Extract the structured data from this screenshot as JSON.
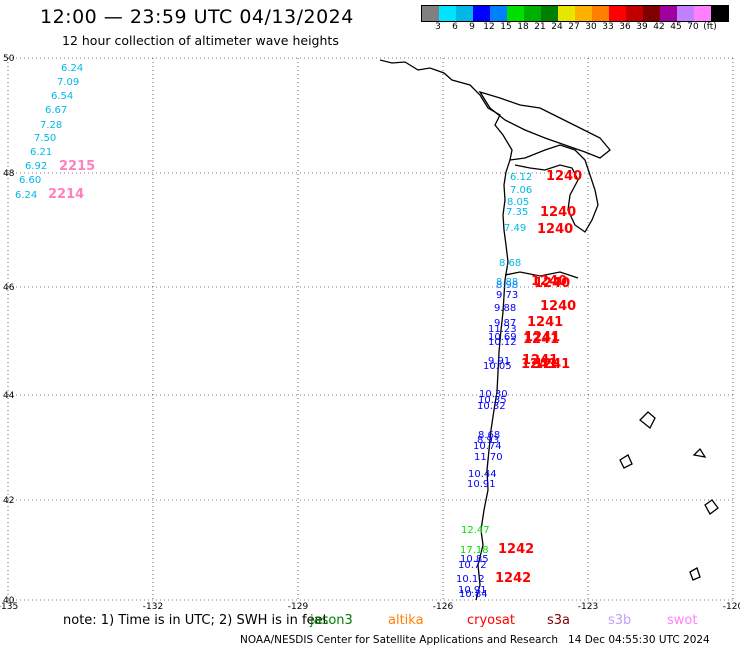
{
  "header": {
    "title": "12:00 — 23:59 UTC 04/13/2024",
    "subtitle": "12 hour collection of altimeter wave heights"
  },
  "legend": {
    "colors": [
      "#808080",
      "#00e5ff",
      "#00b8e6",
      "#0000ff",
      "#0080ff",
      "#00e000",
      "#00b000",
      "#008000",
      "#e6e600",
      "#ffb000",
      "#ff8000",
      "#ff0000",
      "#c00000",
      "#800000",
      "#a000a0",
      "#c080ff",
      "#ff80ff",
      "#000000"
    ],
    "labels": [
      "3",
      "6",
      "9",
      "12",
      "15",
      "18",
      "21",
      "24",
      "27",
      "30",
      "33",
      "36",
      "39",
      "42",
      "45",
      "70",
      "(ft)"
    ]
  },
  "axes": {
    "lat_labels": [
      "50",
      "48",
      "46",
      "44",
      "42",
      "40"
    ],
    "lon_labels": [
      "-135",
      "-132",
      "-129",
      "-126",
      "-123",
      "-120"
    ]
  },
  "observations": [
    {
      "text": "6.24",
      "color": "#00b8e6"
    },
    {
      "text": "7.09",
      "color": "#00b8e6"
    },
    {
      "text": "6.54",
      "color": "#00b8e6"
    },
    {
      "text": "6.67",
      "color": "#00b8e6"
    },
    {
      "text": "7.28",
      "color": "#00b8e6"
    },
    {
      "text": "7.50",
      "color": "#00b8e6"
    },
    {
      "text": "6.21",
      "color": "#00b8e6"
    },
    {
      "text": "6.92",
      "color": "#00b8e6"
    },
    {
      "text": "6.60",
      "color": "#00b8e6"
    },
    {
      "text": "6.24",
      "color": "#00b8e6"
    },
    {
      "text": "2215",
      "color": "#ff80c0"
    },
    {
      "text": "2214",
      "color": "#ff80c0"
    },
    {
      "text": "6.12",
      "color": "#00b8e6"
    },
    {
      "text": "7.06",
      "color": "#00b8e6"
    },
    {
      "text": "8.05",
      "color": "#00b8e6"
    },
    {
      "text": "7.35",
      "color": "#00b8e6"
    },
    {
      "text": "7.49",
      "color": "#00b8e6"
    },
    {
      "text": "8.68",
      "color": "#00b8e6"
    },
    {
      "text": "8.88",
      "color": "#00b8e6"
    },
    {
      "text": "8.98",
      "color": "#0080ff"
    },
    {
      "text": "9.73",
      "color": "#0000ff"
    },
    {
      "text": "9.88",
      "color": "#0000ff"
    },
    {
      "text": "9.87",
      "color": "#0000ff"
    },
    {
      "text": "11.23",
      "color": "#0000ff"
    },
    {
      "text": "10.69",
      "color": "#0000ff"
    },
    {
      "text": "10.12",
      "color": "#0000ff"
    },
    {
      "text": "9.91",
      "color": "#0000ff"
    },
    {
      "text": "10.05",
      "color": "#0000ff"
    },
    {
      "text": "10.30",
      "color": "#0000ff"
    },
    {
      "text": "10.35",
      "color": "#0000ff"
    },
    {
      "text": "10.32",
      "color": "#0000ff"
    },
    {
      "text": "8.68",
      "color": "#0000ff"
    },
    {
      "text": "8.93",
      "color": "#0000ff"
    },
    {
      "text": "10.74",
      "color": "#0000ff"
    },
    {
      "text": "11.70",
      "color": "#0000ff"
    },
    {
      "text": "10.44",
      "color": "#0000ff"
    },
    {
      "text": "10.91",
      "color": "#0000ff"
    },
    {
      "text": "12.47",
      "color": "#00e000"
    },
    {
      "text": "17.18",
      "color": "#00e000"
    },
    {
      "text": "10.85",
      "color": "#0000ff"
    },
    {
      "text": "10.72",
      "color": "#0000ff"
    },
    {
      "text": "10.12",
      "color": "#0000ff"
    },
    {
      "text": "10.91",
      "color": "#0000ff"
    },
    {
      "text": "10.84",
      "color": "#0000ff"
    },
    {
      "text": "1240",
      "color": "#ff0000"
    },
    {
      "text": "1240",
      "color": "#ff0000"
    },
    {
      "text": "1240",
      "color": "#ff0000"
    },
    {
      "text": "1240",
      "color": "#ff0000"
    },
    {
      "text": "1240",
      "color": "#ff0000"
    },
    {
      "text": "1240",
      "color": "#ff0000"
    },
    {
      "text": "1241",
      "color": "#ff0000"
    },
    {
      "text": "1241",
      "color": "#ff0000"
    },
    {
      "text": "1241",
      "color": "#ff0000"
    },
    {
      "text": "1241",
      "color": "#ff0000"
    },
    {
      "text": "1241",
      "color": "#ff0000"
    },
    {
      "text": "1241",
      "color": "#ff0000"
    },
    {
      "text": "1242",
      "color": "#ff0000"
    },
    {
      "text": "1242",
      "color": "#ff0000"
    }
  ],
  "footer": {
    "note": "note:  1) Time is in UTC; 2) SWH is in feet",
    "missions": [
      {
        "name": "jason3",
        "color": "#008000"
      },
      {
        "name": "altika",
        "color": "#ff8000"
      },
      {
        "name": "cryosat",
        "color": "#ff0000"
      },
      {
        "name": "s3a",
        "color": "#800000"
      },
      {
        "name": "s3b",
        "color": "#c0a0ff"
      },
      {
        "name": "swot",
        "color": "#ff80ff"
      }
    ],
    "credit": "NOAA/NESDIS Center for Satellite Applications and Research",
    "timestamp": "14 Dec 04:55:30 UTC 2024"
  }
}
